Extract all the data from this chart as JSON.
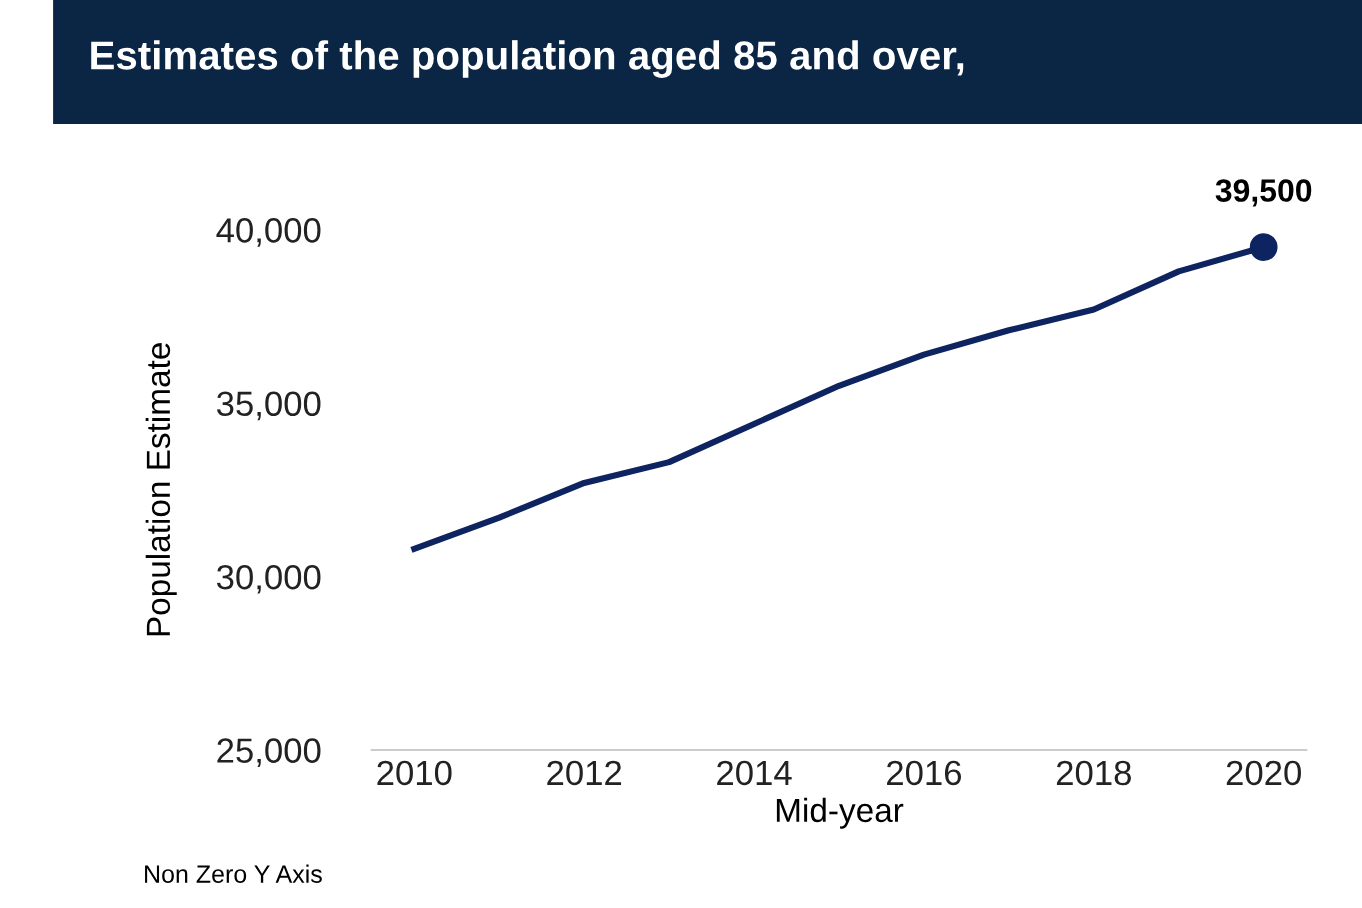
{
  "chart_data": {
    "type": "line",
    "title": "Estimates of the population aged 85 and over,",
    "xlabel": "Mid-year",
    "ylabel": "Population Estimate",
    "x": [
      2010,
      2011,
      2012,
      2013,
      2014,
      2015,
      2016,
      2017,
      2018,
      2019,
      2020
    ],
    "series": [
      {
        "color": "#0e2461",
        "values": [
          30800,
          31700,
          32700,
          33300,
          34400,
          35500,
          36400,
          37100,
          37700,
          38800,
          39500
        ]
      }
    ],
    "xlim": [
      2009.5,
      2020.5
    ],
    "xticks": [
      2010,
      2012,
      2014,
      2016,
      2018,
      2020
    ],
    "ylim": [
      25000,
      40000
    ],
    "yticks": [
      {
        "value": 25000,
        "label": "25,000"
      },
      {
        "value": 30000,
        "label": "30,000"
      },
      {
        "value": 35000,
        "label": "35,000"
      },
      {
        "value": 40000,
        "label": "40,000"
      }
    ],
    "annotations": [
      {
        "text": "39,500",
        "x": 2020,
        "y": 39500
      },
      "Non Zero Y Axis"
    ],
    "grid": false,
    "legend": false,
    "marker": "none",
    "line_style": "solid"
  }
}
